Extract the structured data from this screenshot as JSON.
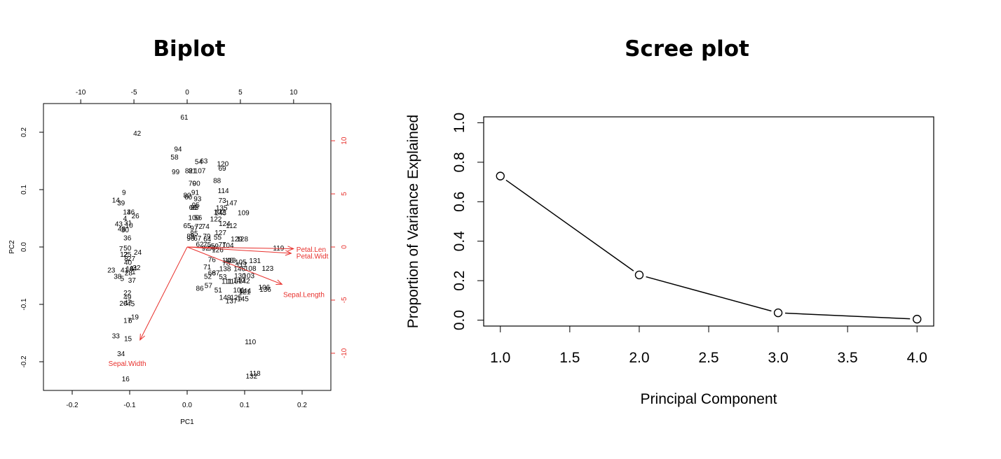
{
  "panels": {
    "biplot_title": "Biplot",
    "scree_title": "Scree plot"
  },
  "chart_data": [
    {
      "type": "scatter",
      "title": "Biplot",
      "xlabel": "PC1",
      "ylabel": "PC2",
      "xlim": [
        -0.25,
        0.25
      ],
      "ylim": [
        -0.25,
        0.25
      ],
      "xticks": [
        -0.2,
        -0.1,
        0.0,
        0.1,
        0.2
      ],
      "yticks": [
        -0.2,
        -0.1,
        0.0,
        0.1,
        0.2
      ],
      "top_xlim": [
        -13.5,
        13.5
      ],
      "top_xticks": [
        -10,
        -5,
        0,
        5,
        10
      ],
      "right_yticks": [
        -10,
        -5,
        0,
        5,
        10
      ],
      "axis2_color": "#e8302c",
      "points": [
        {
          "label": "61",
          "x": -0.005,
          "y": 0.226
        },
        {
          "label": "42",
          "x": -0.087,
          "y": 0.198
        },
        {
          "label": "94",
          "x": -0.016,
          "y": 0.171
        },
        {
          "label": "58",
          "x": -0.022,
          "y": 0.157
        },
        {
          "label": "54",
          "x": 0.02,
          "y": 0.149
        },
        {
          "label": "63",
          "x": 0.029,
          "y": 0.15
        },
        {
          "label": "120",
          "x": 0.062,
          "y": 0.145
        },
        {
          "label": "99",
          "x": -0.02,
          "y": 0.131
        },
        {
          "label": "82",
          "x": 0.003,
          "y": 0.133
        },
        {
          "label": "81",
          "x": 0.009,
          "y": 0.133
        },
        {
          "label": "107",
          "x": 0.022,
          "y": 0.133
        },
        {
          "label": "69",
          "x": 0.061,
          "y": 0.137
        },
        {
          "label": "88",
          "x": 0.052,
          "y": 0.116
        },
        {
          "label": "70",
          "x": 0.009,
          "y": 0.111
        },
        {
          "label": "90",
          "x": 0.016,
          "y": 0.111
        },
        {
          "label": "114",
          "x": 0.063,
          "y": 0.098
        },
        {
          "label": "91",
          "x": 0.014,
          "y": 0.095
        },
        {
          "label": "80",
          "x": 0.0,
          "y": 0.09
        },
        {
          "label": "60",
          "x": 0.002,
          "y": 0.087
        },
        {
          "label": "93",
          "x": 0.018,
          "y": 0.084
        },
        {
          "label": "73",
          "x": 0.061,
          "y": 0.081
        },
        {
          "label": "147",
          "x": 0.077,
          "y": 0.077
        },
        {
          "label": "68",
          "x": 0.01,
          "y": 0.069
        },
        {
          "label": "83",
          "x": 0.013,
          "y": 0.069
        },
        {
          "label": "95",
          "x": 0.015,
          "y": 0.073
        },
        {
          "label": "135",
          "x": 0.06,
          "y": 0.068
        },
        {
          "label": "109",
          "x": 0.098,
          "y": 0.06
        },
        {
          "label": "102",
          "x": 0.056,
          "y": 0.061
        },
        {
          "label": "143",
          "x": 0.058,
          "y": 0.06
        },
        {
          "label": "122",
          "x": 0.05,
          "y": 0.049
        },
        {
          "label": "100",
          "x": 0.012,
          "y": 0.051
        },
        {
          "label": "56",
          "x": 0.019,
          "y": 0.051
        },
        {
          "label": "124",
          "x": 0.065,
          "y": 0.041
        },
        {
          "label": "112",
          "x": 0.077,
          "y": 0.037
        },
        {
          "label": "65",
          "x": 0.0,
          "y": 0.037
        },
        {
          "label": "97",
          "x": 0.012,
          "y": 0.033
        },
        {
          "label": "72",
          "x": 0.02,
          "y": 0.036
        },
        {
          "label": "74",
          "x": 0.032,
          "y": 0.036
        },
        {
          "label": "127",
          "x": 0.058,
          "y": 0.025
        },
        {
          "label": "85",
          "x": 0.012,
          "y": 0.024
        },
        {
          "label": "79",
          "x": 0.034,
          "y": 0.019
        },
        {
          "label": "89",
          "x": 0.006,
          "y": 0.019
        },
        {
          "label": "96",
          "x": 0.006,
          "y": 0.015
        },
        {
          "label": "67",
          "x": 0.018,
          "y": 0.015
        },
        {
          "label": "64",
          "x": 0.035,
          "y": 0.014
        },
        {
          "label": "55",
          "x": 0.053,
          "y": 0.017
        },
        {
          "label": "129",
          "x": 0.086,
          "y": 0.014
        },
        {
          "label": "128",
          "x": 0.096,
          "y": 0.014
        },
        {
          "label": "62",
          "x": 0.022,
          "y": 0.005
        },
        {
          "label": "75",
          "x": 0.035,
          "y": 0.004
        },
        {
          "label": "59",
          "x": 0.048,
          "y": 0.002
        },
        {
          "label": "77",
          "x": 0.061,
          "y": 0.004
        },
        {
          "label": "104",
          "x": 0.071,
          "y": 0.003
        },
        {
          "label": "92",
          "x": 0.032,
          "y": -0.002
        },
        {
          "label": "98",
          "x": 0.043,
          "y": -0.002
        },
        {
          "label": "126",
          "x": 0.053,
          "y": -0.005
        },
        {
          "label": "119",
          "x": 0.159,
          "y": -0.002
        },
        {
          "label": "76",
          "x": 0.043,
          "y": -0.022
        },
        {
          "label": "148",
          "x": 0.071,
          "y": -0.023
        },
        {
          "label": "113",
          "x": 0.075,
          "y": -0.023
        },
        {
          "label": "105",
          "x": 0.093,
          "y": -0.026
        },
        {
          "label": "131",
          "x": 0.118,
          "y": -0.024
        },
        {
          "label": "78",
          "x": 0.068,
          "y": -0.028
        },
        {
          "label": "117",
          "x": 0.095,
          "y": -0.031
        },
        {
          "label": "71",
          "x": 0.035,
          "y": -0.035
        },
        {
          "label": "138",
          "x": 0.066,
          "y": -0.038
        },
        {
          "label": "146",
          "x": 0.091,
          "y": -0.038
        },
        {
          "label": "108",
          "x": 0.11,
          "y": -0.037
        },
        {
          "label": "123",
          "x": 0.14,
          "y": -0.037
        },
        {
          "label": "66",
          "x": 0.043,
          "y": -0.045
        },
        {
          "label": "87",
          "x": 0.05,
          "y": -0.045
        },
        {
          "label": "52",
          "x": 0.036,
          "y": -0.051
        },
        {
          "label": "53",
          "x": 0.062,
          "y": -0.052
        },
        {
          "label": "130",
          "x": 0.092,
          "y": -0.05
        },
        {
          "label": "103",
          "x": 0.107,
          "y": -0.05
        },
        {
          "label": "111",
          "x": 0.069,
          "y": -0.06
        },
        {
          "label": "116",
          "x": 0.079,
          "y": -0.06
        },
        {
          "label": "140",
          "x": 0.09,
          "y": -0.058
        },
        {
          "label": "142",
          "x": 0.099,
          "y": -0.059
        },
        {
          "label": "57",
          "x": 0.037,
          "y": -0.067
        },
        {
          "label": "86",
          "x": 0.022,
          "y": -0.072
        },
        {
          "label": "51",
          "x": 0.054,
          "y": -0.075
        },
        {
          "label": "101",
          "x": 0.09,
          "y": -0.075
        },
        {
          "label": "144",
          "x": 0.101,
          "y": -0.076
        },
        {
          "label": "121",
          "x": 0.1,
          "y": -0.078
        },
        {
          "label": "106",
          "x": 0.134,
          "y": -0.07
        },
        {
          "label": "136",
          "x": 0.136,
          "y": -0.074
        },
        {
          "label": "149",
          "x": 0.066,
          "y": -0.088
        },
        {
          "label": "125",
          "x": 0.085,
          "y": -0.088
        },
        {
          "label": "145",
          "x": 0.097,
          "y": -0.09
        },
        {
          "label": "137",
          "x": 0.077,
          "y": -0.094
        },
        {
          "label": "110",
          "x": 0.11,
          "y": -0.165
        },
        {
          "label": "118",
          "x": 0.118,
          "y": -0.22
        },
        {
          "label": "132",
          "x": 0.112,
          "y": -0.225
        },
        {
          "label": "9",
          "x": -0.11,
          "y": 0.095
        },
        {
          "label": "14",
          "x": -0.124,
          "y": 0.082
        },
        {
          "label": "39",
          "x": -0.115,
          "y": 0.077
        },
        {
          "label": "13",
          "x": -0.105,
          "y": 0.061
        },
        {
          "label": "46",
          "x": -0.098,
          "y": 0.061
        },
        {
          "label": "26",
          "x": -0.09,
          "y": 0.054
        },
        {
          "label": "4",
          "x": -0.108,
          "y": 0.05
        },
        {
          "label": "43",
          "x": -0.119,
          "y": 0.04
        },
        {
          "label": "31",
          "x": -0.103,
          "y": 0.042
        },
        {
          "label": "10",
          "x": -0.101,
          "y": 0.038
        },
        {
          "label": "48",
          "x": -0.114,
          "y": 0.032
        },
        {
          "label": "30",
          "x": -0.108,
          "y": 0.03
        },
        {
          "label": "36",
          "x": -0.104,
          "y": 0.016
        },
        {
          "label": "7",
          "x": -0.115,
          "y": -0.003
        },
        {
          "label": "50",
          "x": -0.104,
          "y": -0.002
        },
        {
          "label": "24",
          "x": -0.086,
          "y": -0.009
        },
        {
          "label": "12",
          "x": -0.11,
          "y": -0.013
        },
        {
          "label": "25",
          "x": -0.104,
          "y": -0.013
        },
        {
          "label": "8",
          "x": -0.106,
          "y": -0.02
        },
        {
          "label": "27",
          "x": -0.097,
          "y": -0.02
        },
        {
          "label": "40",
          "x": -0.103,
          "y": -0.027
        },
        {
          "label": "23",
          "x": -0.132,
          "y": -0.04
        },
        {
          "label": "41",
          "x": -0.109,
          "y": -0.04
        },
        {
          "label": "18",
          "x": -0.1,
          "y": -0.038
        },
        {
          "label": "44",
          "x": -0.094,
          "y": -0.037
        },
        {
          "label": "32",
          "x": -0.088,
          "y": -0.036
        },
        {
          "label": "28",
          "x": -0.102,
          "y": -0.045
        },
        {
          "label": "1",
          "x": -0.093,
          "y": -0.043
        },
        {
          "label": "38",
          "x": -0.121,
          "y": -0.051
        },
        {
          "label": "5",
          "x": -0.113,
          "y": -0.055
        },
        {
          "label": "37",
          "x": -0.096,
          "y": -0.058
        },
        {
          "label": "22",
          "x": -0.104,
          "y": -0.08
        },
        {
          "label": "49",
          "x": -0.104,
          "y": -0.087
        },
        {
          "label": "20",
          "x": -0.111,
          "y": -0.098
        },
        {
          "label": "47",
          "x": -0.103,
          "y": -0.097
        },
        {
          "label": "45",
          "x": -0.098,
          "y": -0.099
        },
        {
          "label": "19",
          "x": -0.091,
          "y": -0.122
        },
        {
          "label": "17",
          "x": -0.104,
          "y": -0.128
        },
        {
          "label": "6",
          "x": -0.099,
          "y": -0.128
        },
        {
          "label": "33",
          "x": -0.124,
          "y": -0.155
        },
        {
          "label": "15",
          "x": -0.103,
          "y": -0.16
        },
        {
          "label": "34",
          "x": -0.115,
          "y": -0.186
        },
        {
          "label": "16",
          "x": -0.107,
          "y": -0.23
        }
      ],
      "arrows": [
        {
          "label": "Petal.Length",
          "label_shown": "Petal.Len",
          "x": 0.185,
          "y": -0.003,
          "label_x": 0.19,
          "label_y": -0.004
        },
        {
          "label": "Petal.Width",
          "label_shown": "Petal.Widt",
          "x": 0.181,
          "y": -0.011,
          "label_x": 0.19,
          "label_y": -0.016
        },
        {
          "label": "Sepal.Length",
          "x": 0.165,
          "y": -0.065,
          "label_x": 0.167,
          "label_y": -0.083
        },
        {
          "label": "Sepal.Width",
          "x": -0.082,
          "y": -0.162,
          "label_x": -0.137,
          "label_y": -0.203
        }
      ]
    },
    {
      "type": "line",
      "title": "Scree plot",
      "xlabel": "Principal Component",
      "ylabel": "Proportion of Variance Explained",
      "x": [
        1,
        2,
        3,
        4
      ],
      "values": [
        0.73,
        0.229,
        0.037,
        0.005
      ],
      "xlim": [
        0.88,
        4.12
      ],
      "ylim": [
        -0.03,
        1.03
      ],
      "xticks": [
        "1.0",
        "1.5",
        "2.0",
        "2.5",
        "3.0",
        "3.5",
        "4.0"
      ],
      "xtick_values": [
        1.0,
        1.5,
        2.0,
        2.5,
        3.0,
        3.5,
        4.0
      ],
      "yticks": [
        "0.0",
        "0.2",
        "0.4",
        "0.6",
        "0.8",
        "1.0"
      ],
      "ytick_values": [
        0.0,
        0.2,
        0.4,
        0.6,
        0.8,
        1.0
      ],
      "markers": "open-circle"
    }
  ]
}
